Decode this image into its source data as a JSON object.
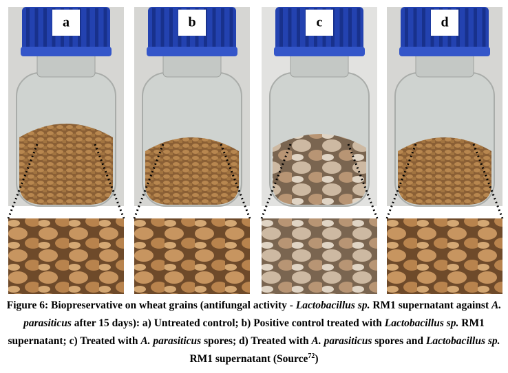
{
  "panels": [
    {
      "label": "a"
    },
    {
      "label": "b"
    },
    {
      "label": "c"
    },
    {
      "label": "d"
    }
  ],
  "caption": {
    "runs": [
      "Figure 6: Biopreservative on wheat grains (antifungal activity - ",
      "Lactobacillus sp.",
      " RM1 supernatant against ",
      "A. parasiticus",
      " after 15 days): a) Untreated control; b) Positive control treated with ",
      "Lactobacillus sp.",
      " RM1 supernatant; c) Treated with ",
      "A. parasiticus",
      " spores; d) Treated with ",
      "A. parasiticus",
      " spores and ",
      "Lactobacillus sp.",
      " RM1 supernatant (Source",
      "72",
      ")"
    ]
  }
}
